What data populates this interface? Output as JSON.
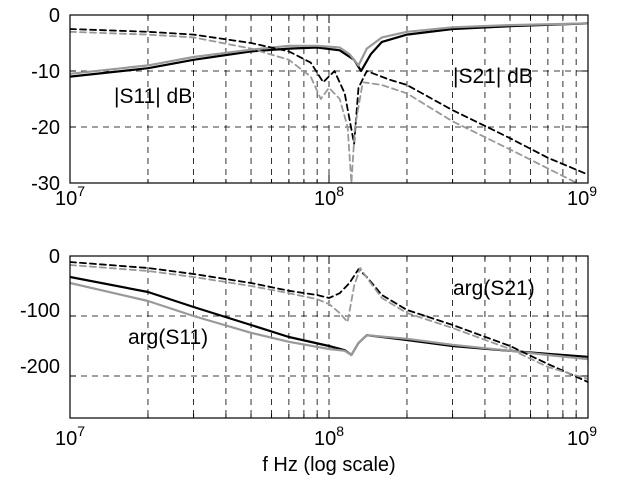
{
  "xlabel": "f Hz (log scale)",
  "chart_data": [
    {
      "type": "line",
      "xscale": "log",
      "xlim": [
        10000000,
        1000000000
      ],
      "ylim": [
        -30,
        0
      ],
      "yticks": [
        0,
        -10,
        -20,
        -30
      ],
      "xtick_labels": [
        {
          "base": "10",
          "exp": "7"
        },
        {
          "base": "10",
          "exp": "8"
        },
        {
          "base": "10",
          "exp": "9"
        }
      ],
      "ytick_labels": [
        "0",
        "-10",
        "-20",
        "-30"
      ],
      "grid": true,
      "annotations": [
        "|S11| dB",
        "|S21| dB"
      ],
      "series": [
        {
          "color": "#000000",
          "dash": "solid",
          "x": [
            10000000,
            20000000,
            30000000,
            50000000,
            70000000,
            90000000,
            110000000,
            125000000,
            133000000,
            145000000,
            160000000,
            200000000,
            300000000,
            500000000,
            1000000000
          ],
          "y": [
            -11,
            -9.5,
            -8,
            -6.5,
            -6,
            -5.8,
            -6.3,
            -8,
            -10,
            -7,
            -4.8,
            -3.5,
            -2.5,
            -2,
            -1.5
          ]
        },
        {
          "color": "#999999",
          "dash": "solid",
          "x": [
            10000000,
            20000000,
            30000000,
            50000000,
            70000000,
            90000000,
            110000000,
            120000000,
            130000000,
            140000000,
            160000000,
            200000000,
            300000000,
            500000000,
            1000000000
          ],
          "y": [
            -10.5,
            -9,
            -7.5,
            -6.2,
            -5.5,
            -5.5,
            -5.8,
            -7,
            -9,
            -6,
            -4,
            -3,
            -2.2,
            -1.8,
            -1.5
          ]
        },
        {
          "color": "#000000",
          "dash": "dashed",
          "x": [
            10000000,
            20000000,
            30000000,
            50000000,
            70000000,
            85000000,
            95000000,
            105000000,
            115000000,
            125000000,
            130000000,
            140000000,
            170000000,
            200000000,
            300000000,
            500000000,
            700000000,
            1000000000
          ],
          "y": [
            -2.5,
            -3,
            -3.5,
            -5,
            -6.5,
            -8.5,
            -12,
            -10,
            -14,
            -23,
            -13,
            -10,
            -11.5,
            -12.5,
            -17,
            -22,
            -25.5,
            -28.5
          ]
        },
        {
          "color": "#999999",
          "dash": "dashed",
          "x": [
            10000000,
            20000000,
            30000000,
            50000000,
            70000000,
            85000000,
            93000000,
            100000000,
            110000000,
            118000000,
            122000000,
            126000000,
            135000000,
            160000000,
            200000000,
            300000000,
            500000000,
            1000000000
          ],
          "y": [
            -3,
            -3.5,
            -4,
            -6,
            -8,
            -11,
            -15,
            -13,
            -15,
            -20,
            -30,
            -20,
            -12,
            -12.5,
            -14,
            -19,
            -24,
            -31
          ]
        }
      ]
    },
    {
      "type": "line",
      "xscale": "log",
      "xlim": [
        10000000,
        1000000000
      ],
      "ylim": [
        -270,
        0
      ],
      "yticks": [
        0,
        -100,
        -200
      ],
      "xtick_labels": [
        {
          "base": "10",
          "exp": "7"
        },
        {
          "base": "10",
          "exp": "8"
        },
        {
          "base": "10",
          "exp": "9"
        }
      ],
      "ytick_labels": [
        "0",
        "-100",
        "-200"
      ],
      "grid": true,
      "annotations": [
        "arg(S21)",
        "arg(S11)"
      ],
      "series": [
        {
          "color": "#000000",
          "dash": "solid",
          "x": [
            10000000,
            20000000,
            30000000,
            50000000,
            70000000,
            100000000,
            115000000,
            122000000,
            130000000,
            140000000,
            200000000,
            300000000,
            500000000,
            700000000,
            1000000000
          ],
          "y": [
            -35,
            -60,
            -85,
            -115,
            -135,
            -150,
            -157,
            -165,
            -145,
            -132,
            -140,
            -150,
            -158,
            -163,
            -168
          ]
        },
        {
          "color": "#999999",
          "dash": "solid",
          "x": [
            10000000,
            20000000,
            30000000,
            50000000,
            70000000,
            100000000,
            115000000,
            122000000,
            130000000,
            140000000,
            200000000,
            300000000,
            500000000,
            700000000,
            1000000000
          ],
          "y": [
            -45,
            -75,
            -100,
            -128,
            -143,
            -155,
            -158,
            -165,
            -145,
            -132,
            -138,
            -148,
            -158,
            -165,
            -172
          ]
        },
        {
          "color": "#000000",
          "dash": "dashed",
          "x": [
            10000000,
            20000000,
            30000000,
            50000000,
            70000000,
            90000000,
            100000000,
            110000000,
            120000000,
            130000000,
            140000000,
            160000000,
            200000000,
            300000000,
            500000000,
            700000000,
            1000000000
          ],
          "y": [
            -10,
            -20,
            -30,
            -45,
            -58,
            -65,
            -70,
            -62,
            -45,
            -22,
            -35,
            -65,
            -90,
            -115,
            -150,
            -180,
            -210
          ]
        },
        {
          "color": "#999999",
          "dash": "dashed",
          "x": [
            10000000,
            20000000,
            30000000,
            50000000,
            70000000,
            90000000,
            100000000,
            110000000,
            118000000,
            125000000,
            132000000,
            142000000,
            160000000,
            200000000,
            300000000,
            500000000,
            700000000,
            1000000000
          ],
          "y": [
            -15,
            -25,
            -35,
            -50,
            -62,
            -72,
            -80,
            -95,
            -110,
            -50,
            -20,
            -40,
            -70,
            -95,
            -120,
            -155,
            -185,
            -205
          ]
        }
      ]
    }
  ]
}
